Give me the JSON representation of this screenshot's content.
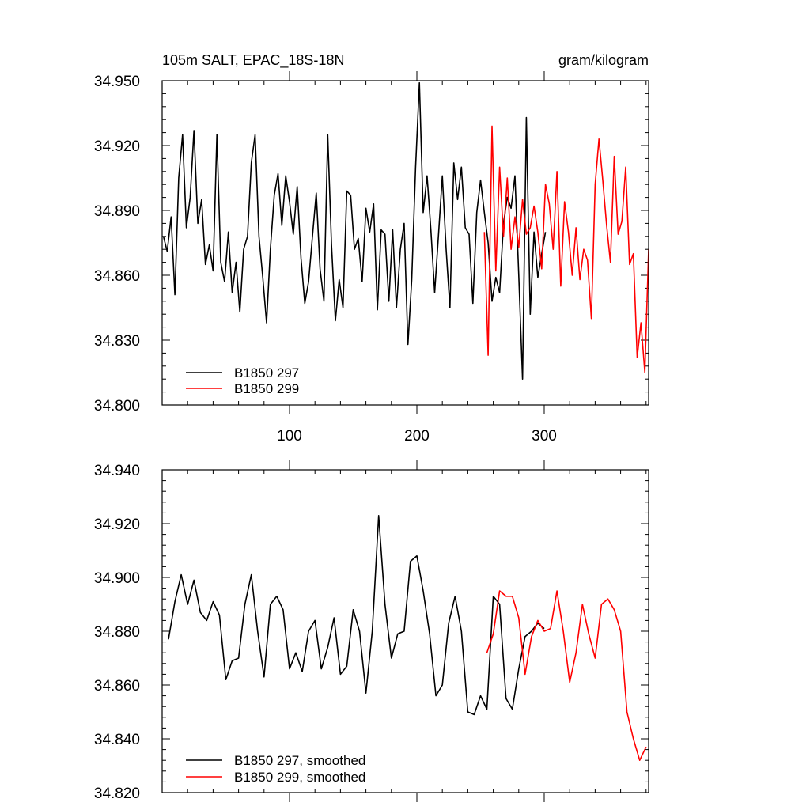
{
  "chart_data": [
    {
      "type": "line",
      "title_left": "105m SALT, EPAC_18S-18N",
      "title_right": "gram/kilogram",
      "xlabel": "",
      "ylabel": "",
      "xlim": [
        0,
        382
      ],
      "ylim": [
        34.8,
        34.95
      ],
      "xticks": [
        100,
        200,
        300
      ],
      "xtick_labels": [
        "100",
        "200",
        "300"
      ],
      "yticks": [
        34.8,
        34.83,
        34.86,
        34.89,
        34.92,
        34.95
      ],
      "ytick_labels": [
        "34.800",
        "34.830",
        "34.860",
        "34.890",
        "34.920",
        "34.950"
      ],
      "legend_position": "bottom-left",
      "series": [
        {
          "name": "B1850 297",
          "color": "#000000",
          "x": [
            1,
            4,
            7,
            10,
            13,
            16,
            19,
            22,
            25,
            28,
            31,
            34,
            37,
            40,
            43,
            46,
            49,
            52,
            55,
            58,
            61,
            64,
            67,
            70,
            73,
            76,
            79,
            82,
            85,
            88,
            91,
            94,
            97,
            100,
            103,
            106,
            109,
            112,
            115,
            118,
            121,
            124,
            127,
            130,
            133,
            136,
            139,
            142,
            145,
            148,
            151,
            154,
            157,
            160,
            163,
            166,
            169,
            172,
            175,
            178,
            181,
            184,
            187,
            190,
            193,
            196,
            199,
            202,
            205,
            208,
            211,
            214,
            217,
            220,
            223,
            226,
            229,
            232,
            235,
            238,
            241,
            244,
            247,
            250,
            253,
            256,
            259,
            262,
            265,
            268,
            271,
            274,
            277,
            280,
            283,
            286,
            289,
            292,
            295,
            298,
            301
          ],
          "values": [
            34.878,
            34.871,
            34.887,
            34.851,
            34.905,
            34.925,
            34.882,
            34.896,
            34.927,
            34.884,
            34.895,
            34.865,
            34.874,
            34.862,
            34.925,
            34.866,
            34.857,
            34.88,
            34.852,
            34.866,
            34.843,
            34.872,
            34.878,
            34.912,
            34.925,
            34.878,
            34.859,
            34.838,
            34.872,
            34.897,
            34.907,
            34.883,
            34.906,
            34.894,
            34.879,
            34.901,
            34.868,
            34.847,
            34.857,
            34.878,
            34.898,
            34.863,
            34.848,
            34.925,
            34.874,
            34.839,
            34.858,
            34.845,
            34.899,
            34.897,
            34.872,
            34.877,
            34.857,
            34.891,
            34.88,
            34.893,
            34.844,
            34.881,
            34.879,
            34.848,
            34.881,
            34.845,
            34.872,
            34.884,
            34.828,
            34.858,
            34.91,
            34.949,
            34.889,
            34.906,
            34.881,
            34.852,
            34.879,
            34.906,
            34.872,
            34.845,
            34.912,
            34.895,
            34.91,
            34.882,
            34.879,
            34.847,
            34.889,
            34.904,
            34.889,
            34.875,
            34.848,
            34.859,
            34.852,
            34.884,
            34.896,
            34.891,
            34.906,
            34.86,
            34.812,
            34.933,
            34.842,
            34.88,
            34.859,
            34.87,
            34.88
          ]
        },
        {
          "name": "B1850 299",
          "color": "#ff0000",
          "x": [
            253,
            256,
            259,
            262,
            265,
            268,
            271,
            274,
            277,
            280,
            283,
            286,
            289,
            292,
            295,
            298,
            301,
            304,
            307,
            310,
            313,
            316,
            319,
            322,
            325,
            328,
            331,
            334,
            337,
            340,
            343,
            346,
            349,
            352,
            355,
            358,
            361,
            364,
            367,
            370,
            373,
            376,
            379,
            382
          ],
          "values": [
            34.88,
            34.823,
            34.929,
            34.862,
            34.91,
            34.878,
            34.905,
            34.872,
            34.887,
            34.873,
            34.895,
            34.879,
            34.882,
            34.892,
            34.88,
            34.863,
            34.902,
            34.893,
            34.872,
            34.908,
            34.855,
            34.894,
            34.88,
            34.86,
            34.882,
            34.858,
            34.872,
            34.867,
            34.84,
            34.902,
            34.923,
            34.904,
            34.883,
            34.866,
            34.915,
            34.879,
            34.885,
            34.91,
            34.865,
            34.87,
            34.822,
            34.838,
            34.815,
            34.872
          ]
        }
      ]
    },
    {
      "type": "line",
      "title_left": "",
      "title_right": "",
      "xlabel": "",
      "ylabel": "",
      "xlim": [
        0,
        382
      ],
      "ylim": [
        34.82,
        34.94
      ],
      "xticks": [
        100,
        200,
        300
      ],
      "xtick_labels": [],
      "yticks": [
        34.82,
        34.84,
        34.86,
        34.88,
        34.9,
        34.92,
        34.94
      ],
      "ytick_labels": [
        "34.820",
        "34.840",
        "34.860",
        "34.880",
        "34.900",
        "34.920",
        "34.940"
      ],
      "legend_position": "bottom-left",
      "series": [
        {
          "name": "B1850 297, smoothed",
          "color": "#000000",
          "x": [
            5,
            10,
            15,
            20,
            25,
            30,
            35,
            40,
            45,
            50,
            55,
            60,
            65,
            70,
            75,
            80,
            85,
            90,
            95,
            100,
            105,
            110,
            115,
            120,
            125,
            130,
            135,
            140,
            145,
            150,
            155,
            160,
            165,
            170,
            175,
            180,
            185,
            190,
            195,
            200,
            205,
            210,
            215,
            220,
            225,
            230,
            235,
            240,
            245,
            250,
            255,
            260,
            265,
            270,
            275,
            280,
            285,
            290,
            295,
            300
          ],
          "values": [
            34.877,
            34.891,
            34.901,
            34.89,
            34.899,
            34.887,
            34.884,
            34.891,
            34.886,
            34.862,
            34.869,
            34.87,
            34.89,
            34.901,
            34.88,
            34.863,
            34.89,
            34.893,
            34.888,
            34.866,
            34.872,
            34.865,
            34.88,
            34.884,
            34.866,
            34.874,
            34.885,
            34.864,
            34.867,
            34.888,
            34.88,
            34.857,
            34.88,
            34.923,
            34.89,
            34.87,
            34.879,
            34.88,
            34.906,
            34.908,
            34.895,
            34.879,
            34.856,
            34.86,
            34.883,
            34.893,
            34.88,
            34.85,
            34.849,
            34.856,
            34.851,
            34.893,
            34.89,
            34.855,
            34.851,
            34.866,
            34.878,
            34.88,
            34.883,
            34.881
          ]
        },
        {
          "name": "B1850 299, smoothed",
          "color": "#ff0000",
          "x": [
            255,
            260,
            265,
            270,
            275,
            280,
            285,
            290,
            295,
            300,
            305,
            310,
            315,
            320,
            325,
            330,
            335,
            340,
            345,
            350,
            355,
            360,
            365,
            370,
            375,
            380
          ],
          "values": [
            34.872,
            34.879,
            34.895,
            34.893,
            34.893,
            34.885,
            34.864,
            34.878,
            34.884,
            34.88,
            34.881,
            34.895,
            34.88,
            34.861,
            34.872,
            34.89,
            34.879,
            34.87,
            34.89,
            34.892,
            34.888,
            34.88,
            34.85,
            34.84,
            34.832,
            34.837
          ]
        }
      ]
    }
  ]
}
